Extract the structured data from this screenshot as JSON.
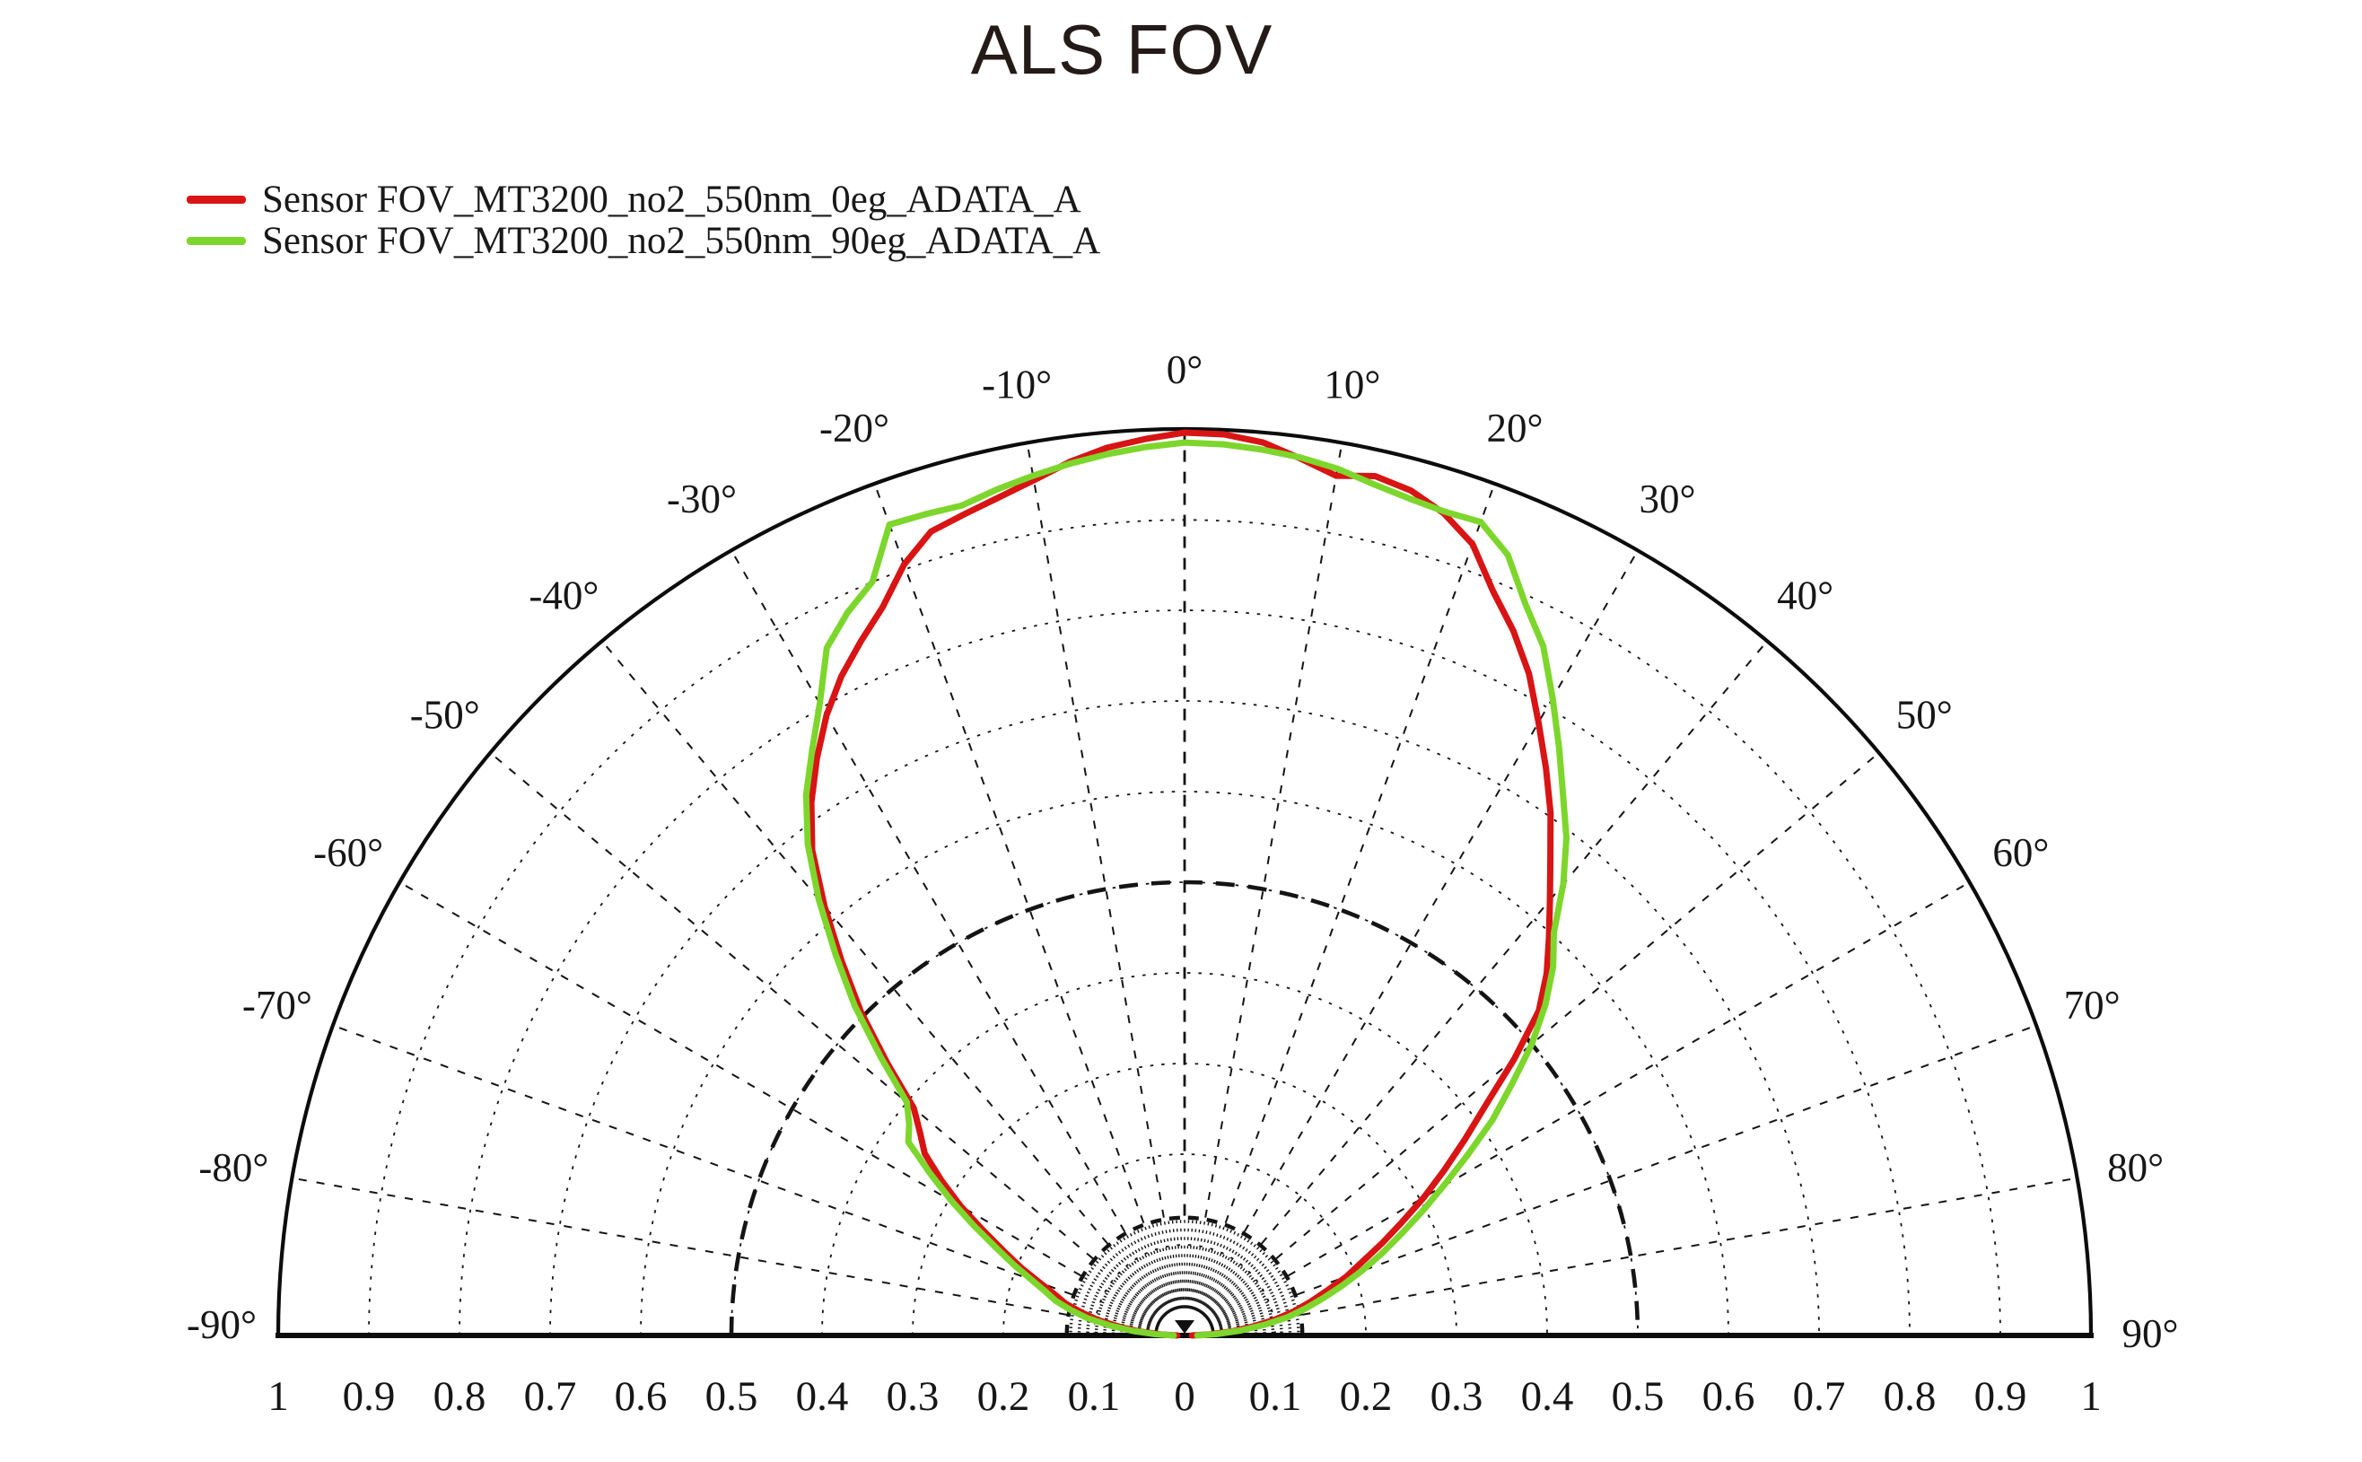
{
  "title": "ALS FOV",
  "legend": {
    "items": [
      {
        "label": "Sensor FOV_MT3200_no2_550nm_0eg_ADATA_A",
        "color": "#d81414"
      },
      {
        "label": "Sensor FOV_MT3200_no2_550nm_90eg_ADATA_A",
        "color": "#7dd62c"
      }
    ]
  },
  "chart_data": {
    "type": "polar_half",
    "title": "ALS FOV",
    "angle_unit": "degrees",
    "angle_range": [
      -90,
      90
    ],
    "radial_range": [
      0,
      1
    ],
    "grid_color": "#141414",
    "grid": {
      "ring_step": 0.1,
      "bold_rings": [
        0.13,
        0.5
      ],
      "spoke_step_deg": 10,
      "fan_step_deg": 2,
      "fan_inner_r": 0.03,
      "fan_outer_r": 0.128,
      "spoke_inner_r": 0.132
    },
    "angle_ticks": [
      {
        "deg": -90,
        "label": "-90°"
      },
      {
        "deg": -80,
        "label": "-80°"
      },
      {
        "deg": -70,
        "label": "-70°"
      },
      {
        "deg": -60,
        "label": "-60°"
      },
      {
        "deg": -50,
        "label": "-50°"
      },
      {
        "deg": -40,
        "label": "-40°"
      },
      {
        "deg": -30,
        "label": "-30°"
      },
      {
        "deg": -20,
        "label": "-20°"
      },
      {
        "deg": -10,
        "label": "-10°"
      },
      {
        "deg": 0,
        "label": "0°"
      },
      {
        "deg": 10,
        "label": "10°"
      },
      {
        "deg": 20,
        "label": "20°"
      },
      {
        "deg": 30,
        "label": "30°"
      },
      {
        "deg": 40,
        "label": "40°"
      },
      {
        "deg": 50,
        "label": "50°"
      },
      {
        "deg": 60,
        "label": "60°"
      },
      {
        "deg": 70,
        "label": "70°"
      },
      {
        "deg": 80,
        "label": "80°"
      },
      {
        "deg": 90,
        "label": "90°"
      }
    ],
    "radial_axis_labels": [
      "1",
      "0.9",
      "0.8",
      "0.7",
      "0.6",
      "0.5",
      "0.4",
      "0.3",
      "0.2",
      "0.1",
      "0",
      "0.1",
      "0.2",
      "0.3",
      "0.4",
      "0.5",
      "0.6",
      "0.7",
      "0.8",
      "0.9",
      "1"
    ],
    "angles_deg": [
      -90,
      -87.5,
      -85,
      -82.5,
      -80,
      -77.5,
      -75,
      -72.5,
      -70,
      -67.5,
      -65,
      -62.5,
      -60,
      -57.5,
      -55,
      -52.5,
      -50,
      -47.5,
      -45,
      -42.5,
      -40,
      -37.5,
      -35,
      -32.5,
      -30,
      -27.5,
      -25,
      -22.5,
      -20,
      -17.5,
      -15,
      -12.5,
      -10,
      -7.5,
      -5,
      -2.5,
      0,
      2.5,
      5,
      7.5,
      10,
      12.5,
      15,
      17.5,
      20,
      22.5,
      25,
      27.5,
      30,
      32.5,
      35,
      37.5,
      40,
      42.5,
      45,
      47.5,
      50,
      52.5,
      55,
      57.5,
      60,
      62.5,
      65,
      67.5,
      70,
      72.5,
      75,
      77.5,
      80,
      82.5,
      85,
      87.5,
      90
    ],
    "series": [
      {
        "name": "Sensor FOV_MT3200_no2_550nm_0eg_ADATA_A",
        "color": "#d81414",
        "r": [
          0.008,
          0.026,
          0.05,
          0.072,
          0.096,
          0.116,
          0.136,
          0.15,
          0.17,
          0.195,
          0.22,
          0.25,
          0.285,
          0.318,
          0.35,
          0.368,
          0.39,
          0.445,
          0.505,
          0.56,
          0.618,
          0.675,
          0.718,
          0.755,
          0.79,
          0.82,
          0.845,
          0.87,
          0.905,
          0.93,
          0.938,
          0.947,
          0.958,
          0.972,
          0.983,
          0.99,
          0.996,
          0.995,
          0.989,
          0.976,
          0.963,
          0.971,
          0.965,
          0.951,
          0.929,
          0.889,
          0.858,
          0.823,
          0.781,
          0.742,
          0.704,
          0.663,
          0.627,
          0.595,
          0.565,
          0.53,
          0.475,
          0.42,
          0.378,
          0.34,
          0.305,
          0.27,
          0.24,
          0.212,
          0.19,
          0.165,
          0.144,
          0.124,
          0.102,
          0.077,
          0.054,
          0.028,
          0.008
        ]
      },
      {
        "name": "Sensor FOV_MT3200_no2_550nm_90eg_ADATA_A",
        "color": "#7dd62c",
        "r": [
          0.012,
          0.032,
          0.057,
          0.082,
          0.108,
          0.128,
          0.147,
          0.161,
          0.18,
          0.204,
          0.23,
          0.262,
          0.297,
          0.333,
          0.372,
          0.383,
          0.4,
          0.455,
          0.515,
          0.57,
          0.628,
          0.683,
          0.728,
          0.765,
          0.805,
          0.855,
          0.88,
          0.9,
          0.952,
          0.95,
          0.948,
          0.956,
          0.963,
          0.97,
          0.976,
          0.981,
          0.985,
          0.984,
          0.981,
          0.977,
          0.971,
          0.962,
          0.956,
          0.953,
          0.955,
          0.932,
          0.89,
          0.857,
          0.812,
          0.769,
          0.728,
          0.692,
          0.65,
          0.603,
          0.575,
          0.54,
          0.5,
          0.455,
          0.415,
          0.37,
          0.33,
          0.295,
          0.263,
          0.235,
          0.208,
          0.182,
          0.158,
          0.136,
          0.115,
          0.088,
          0.062,
          0.035,
          0.014
        ]
      }
    ],
    "legend_position": "top-left",
    "grid_on": true
  }
}
